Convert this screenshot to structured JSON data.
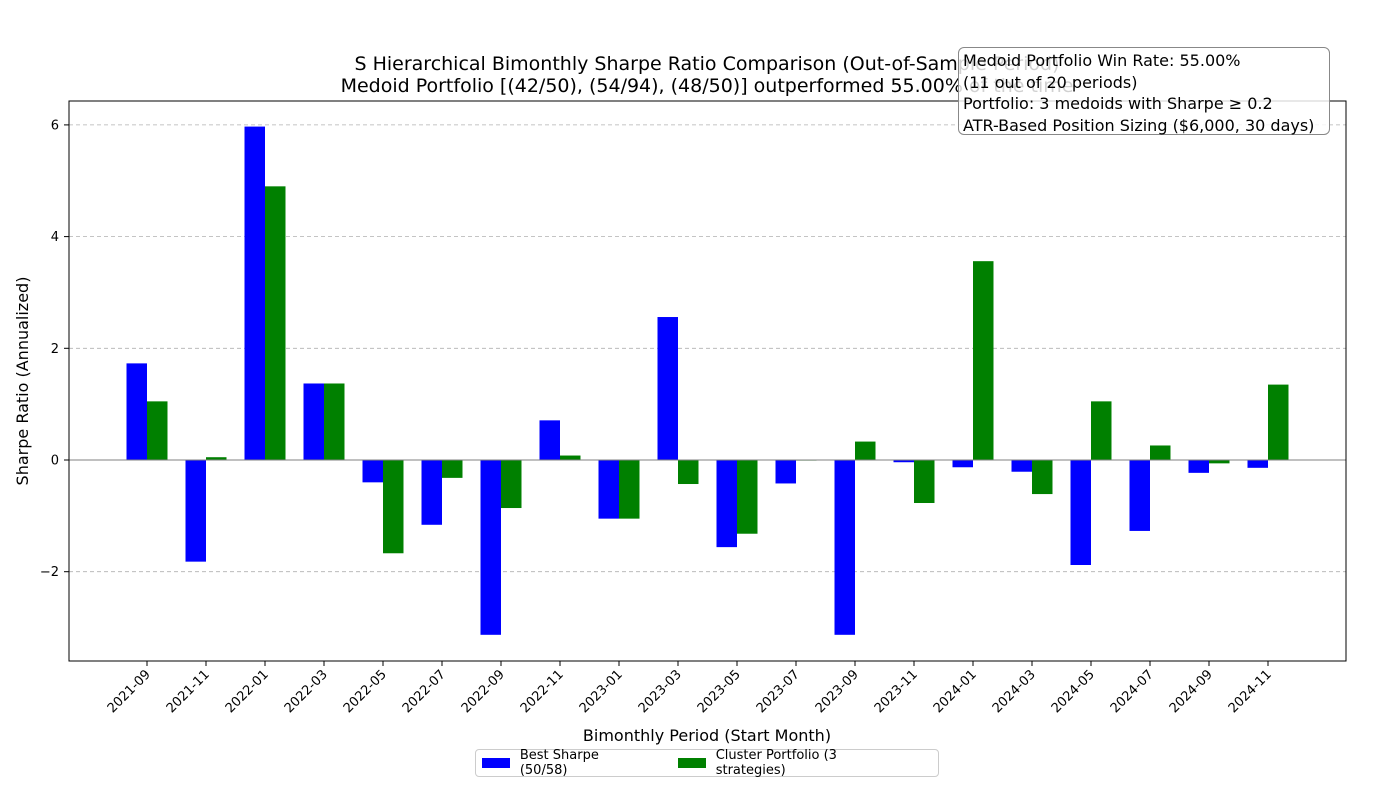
{
  "chart_data": {
    "type": "bar",
    "title": "S Hierarchical Bimonthly Sharpe Ratio Comparison (Out-of-Sample Period)",
    "subtitle": "Medoid Portfolio [(42/50), (54/94), (48/50)] outperformed 55.00% of the time",
    "xlabel": "Bimonthly Period (Start Month)",
    "ylabel": "Sharpe Ratio (Annualized)",
    "ylim": [
      -3.6,
      6.4
    ],
    "yticks": [
      6,
      4,
      2,
      0,
      -2
    ],
    "ytick_labels": [
      "6",
      "4",
      "2",
      "0",
      "−2"
    ],
    "grid": "horizontal dashed",
    "legend_position": "bottom-center",
    "categories": [
      "2021-09",
      "2021-11",
      "2022-01",
      "2022-03",
      "2022-05",
      "2022-07",
      "2022-09",
      "2022-11",
      "2023-01",
      "2023-03",
      "2023-05",
      "2023-07",
      "2023-09",
      "2023-11",
      "2024-01",
      "2024-03",
      "2024-05",
      "2024-07",
      "2024-09",
      "2024-11"
    ],
    "series": [
      {
        "name": "Best Sharpe (50/58)",
        "color": "#0000ff",
        "values": [
          1.73,
          -1.82,
          5.97,
          1.37,
          -0.4,
          -1.16,
          -3.13,
          0.71,
          -1.05,
          2.56,
          -1.56,
          -0.42,
          -3.13,
          -0.04,
          -0.13,
          -0.21,
          -1.88,
          -1.27,
          -0.23,
          -0.14
        ]
      },
      {
        "name": "Cluster Portfolio (3 strategies)",
        "color": "#008000",
        "values": [
          1.05,
          0.05,
          4.9,
          1.37,
          -1.67,
          -0.32,
          -0.86,
          0.08,
          -1.05,
          -0.43,
          -1.32,
          -0.01,
          0.33,
          -0.77,
          3.56,
          -0.61,
          1.05,
          0.26,
          -0.06,
          1.35
        ]
      }
    ],
    "annotation": {
      "lines": [
        "Medoid Portfolio Win Rate: 55.00%",
        "(11 out of 20 periods)",
        "Portfolio: 3 medoids with Sharpe ≥ 0.2",
        "ATR-Based Position Sizing ($6,000, 30 days)"
      ]
    }
  }
}
